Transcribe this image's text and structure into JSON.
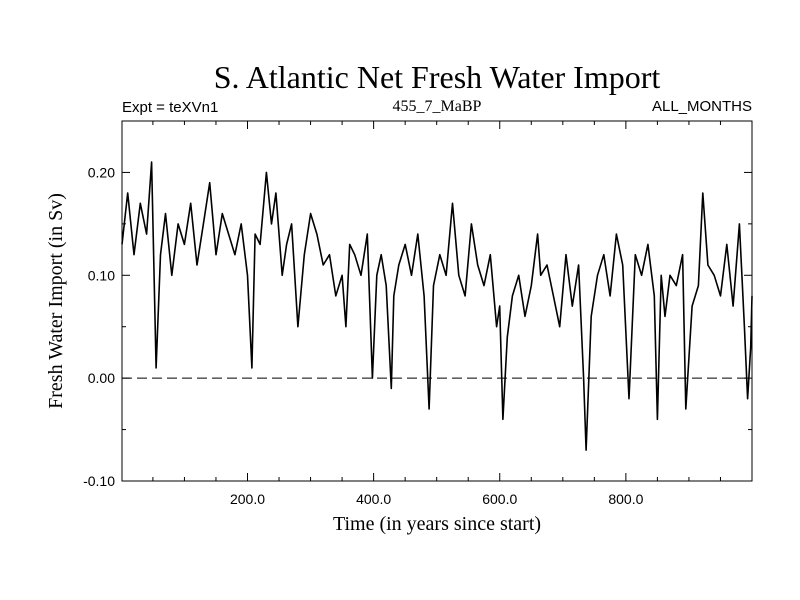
{
  "chart_data": {
    "type": "line",
    "title": "S. Atlantic Net Fresh Water Import",
    "subtitle_left": "Expt = teXVn1",
    "subtitle_center": "455_7_MaBP",
    "subtitle_right": "ALL_MONTHS",
    "xlabel": "Time (in years since start)",
    "ylabel": "Fresh Water Import (in Sv)",
    "xlim": [
      1,
      1000
    ],
    "ylim": [
      -0.1,
      0.25
    ],
    "x_ticks": [
      200,
      400,
      600,
      800
    ],
    "x_tick_labels": [
      "200.0",
      "400.0",
      "600.0",
      "800.0"
    ],
    "y_ticks": [
      -0.1,
      0.0,
      0.1,
      0.2
    ],
    "y_tick_labels": [
      "-0.10",
      "0.00",
      "0.10",
      "0.20"
    ],
    "reference_line": 0.0,
    "series": [
      {
        "name": "Net Fresh Water Import",
        "x": [
          1,
          10,
          20,
          30,
          40,
          48,
          55,
          62,
          70,
          80,
          90,
          100,
          110,
          120,
          130,
          140,
          150,
          160,
          170,
          180,
          190,
          200,
          207,
          212,
          220,
          230,
          238,
          245,
          255,
          262,
          270,
          280,
          290,
          300,
          310,
          320,
          330,
          340,
          350,
          356,
          362,
          370,
          380,
          390,
          398,
          405,
          412,
          420,
          428,
          432,
          440,
          450,
          460,
          470,
          480,
          488,
          495,
          505,
          515,
          525,
          535,
          545,
          555,
          565,
          575,
          585,
          595,
          600,
          605,
          612,
          620,
          630,
          640,
          650,
          660,
          665,
          675,
          685,
          695,
          705,
          715,
          725,
          733,
          737,
          745,
          755,
          765,
          775,
          785,
          795,
          805,
          815,
          825,
          835,
          845,
          850,
          856,
          862,
          870,
          880,
          890,
          895,
          905,
          915,
          922,
          930,
          940,
          950,
          960,
          970,
          980,
          988,
          993,
          998,
          1000
        ],
        "y": [
          0.13,
          0.18,
          0.12,
          0.17,
          0.14,
          0.21,
          0.01,
          0.12,
          0.16,
          0.1,
          0.15,
          0.13,
          0.17,
          0.11,
          0.15,
          0.19,
          0.12,
          0.16,
          0.14,
          0.12,
          0.15,
          0.1,
          0.01,
          0.14,
          0.13,
          0.2,
          0.15,
          0.18,
          0.1,
          0.13,
          0.15,
          0.05,
          0.12,
          0.16,
          0.14,
          0.11,
          0.12,
          0.08,
          0.1,
          0.05,
          0.13,
          0.12,
          0.1,
          0.14,
          0.0,
          0.1,
          0.12,
          0.09,
          -0.01,
          0.08,
          0.11,
          0.13,
          0.1,
          0.14,
          0.08,
          -0.03,
          0.09,
          0.12,
          0.1,
          0.17,
          0.1,
          0.08,
          0.15,
          0.11,
          0.09,
          0.12,
          0.05,
          0.07,
          -0.04,
          0.04,
          0.08,
          0.1,
          0.06,
          0.09,
          0.14,
          0.1,
          0.11,
          0.08,
          0.05,
          0.12,
          0.07,
          0.11,
          0.0,
          -0.07,
          0.06,
          0.1,
          0.12,
          0.08,
          0.14,
          0.11,
          -0.02,
          0.12,
          0.1,
          0.13,
          0.08,
          -0.04,
          0.1,
          0.06,
          0.1,
          0.09,
          0.12,
          -0.03,
          0.07,
          0.09,
          0.18,
          0.11,
          0.1,
          0.08,
          0.13,
          0.07,
          0.15,
          0.05,
          -0.02,
          0.03,
          0.08
        ]
      }
    ]
  }
}
